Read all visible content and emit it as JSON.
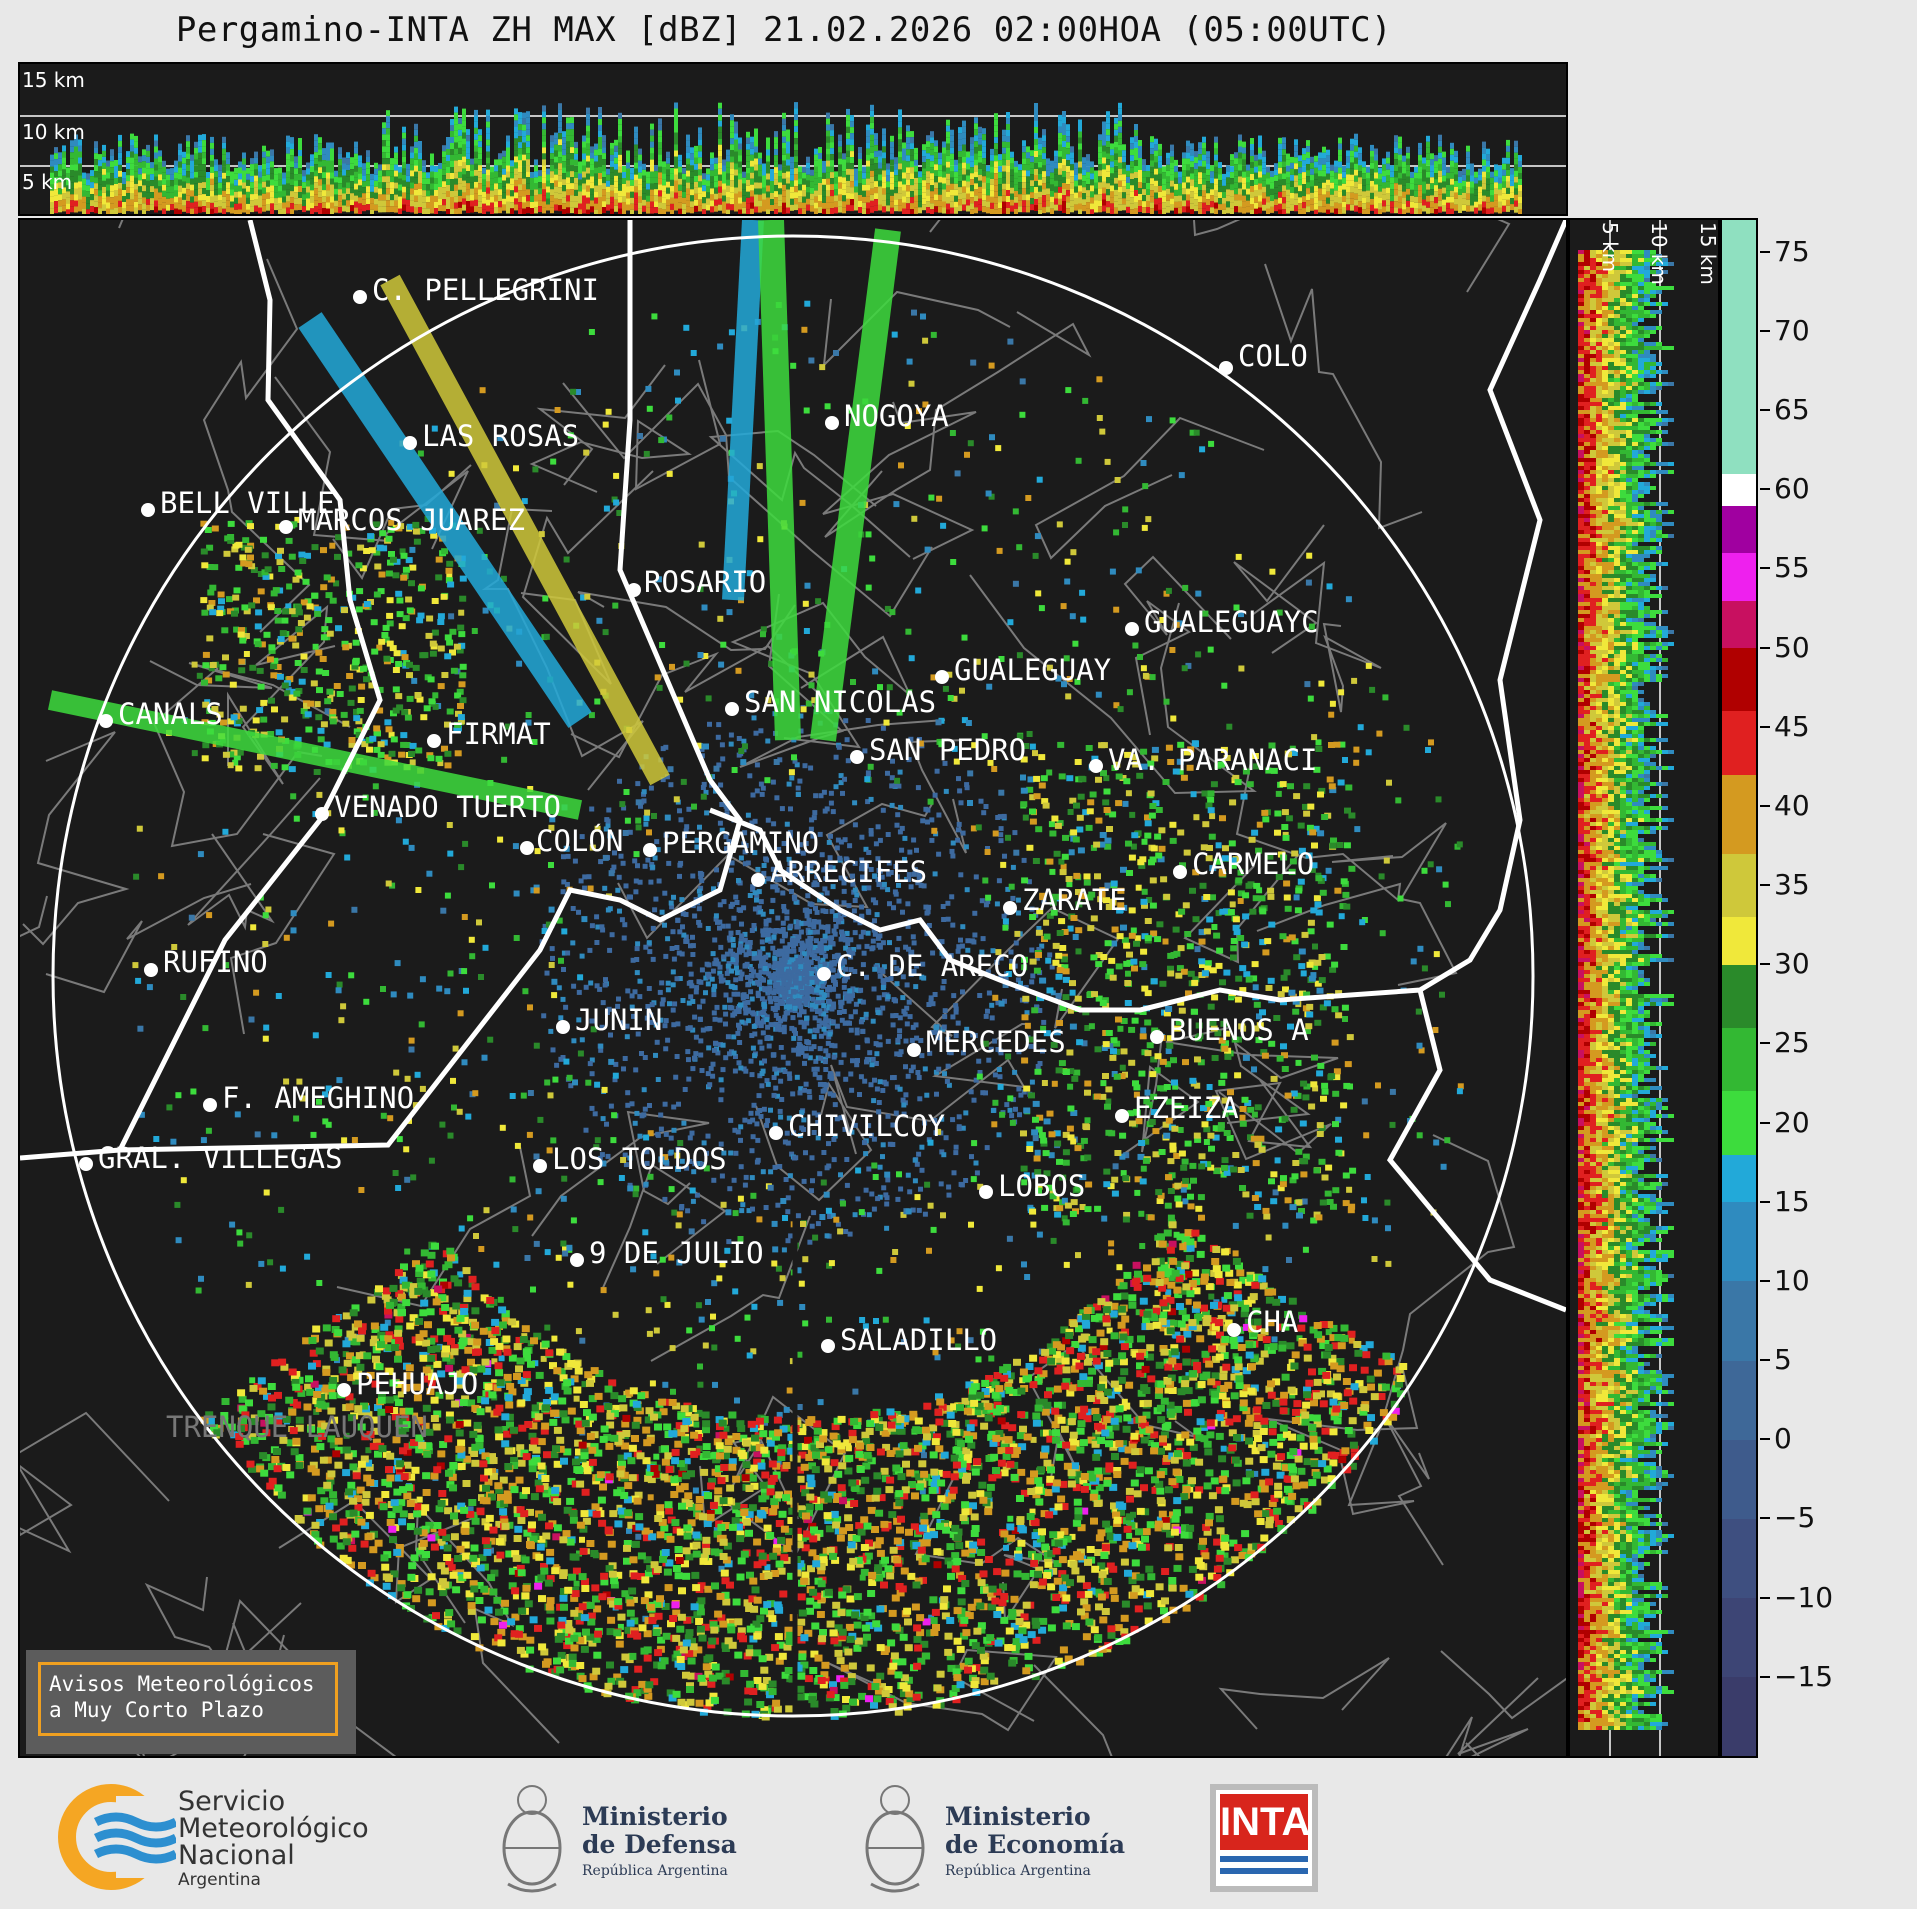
{
  "title": "Pergamino-INTA ZH MAX [dBZ] 21.02.2026 02:00HOA (05:00UTC)",
  "top_panel": {
    "height_labels": [
      "15 km",
      "10 km",
      "5 km"
    ]
  },
  "side_panel": {
    "height_labels": [
      "5 km",
      "10 km",
      "15 km"
    ]
  },
  "colorbar": {
    "unit": "dBZ",
    "ticks": [
      "75",
      "70",
      "65",
      "60",
      "55",
      "50",
      "45",
      "40",
      "35",
      "30",
      "25",
      "20",
      "15",
      "10",
      "5",
      "0",
      "−5",
      "−10",
      "−15"
    ],
    "min": -20,
    "max": 77,
    "color_bins": [
      {
        "from": -20,
        "to": -15,
        "color": "#3a3c6a"
      },
      {
        "from": -15,
        "to": -10,
        "color": "#3d4575"
      },
      {
        "from": -10,
        "to": -5,
        "color": "#3e4f80"
      },
      {
        "from": -5,
        "to": 0,
        "color": "#3e5b8c"
      },
      {
        "from": 0,
        "to": 5,
        "color": "#3e6898"
      },
      {
        "from": 5,
        "to": 10,
        "color": "#3a77a7"
      },
      {
        "from": 10,
        "to": 15,
        "color": "#2f8bbf"
      },
      {
        "from": 15,
        "to": 18,
        "color": "#22a9d9"
      },
      {
        "from": 18,
        "to": 22,
        "color": "#3ddc3d"
      },
      {
        "from": 22,
        "to": 26,
        "color": "#33b833"
      },
      {
        "from": 26,
        "to": 30,
        "color": "#2a8a2a"
      },
      {
        "from": 30,
        "to": 33,
        "color": "#f0e83a"
      },
      {
        "from": 33,
        "to": 37,
        "color": "#cfc83a"
      },
      {
        "from": 37,
        "to": 42,
        "color": "#d49a20"
      },
      {
        "from": 42,
        "to": 46,
        "color": "#e02020"
      },
      {
        "from": 46,
        "to": 50,
        "color": "#b00000"
      },
      {
        "from": 50,
        "to": 53,
        "color": "#c81060"
      },
      {
        "from": 53,
        "to": 56,
        "color": "#ee20ee"
      },
      {
        "from": 56,
        "to": 59,
        "color": "#a000a0"
      },
      {
        "from": 59,
        "to": 61,
        "color": "#ffffff"
      },
      {
        "from": 61,
        "to": 77,
        "color": "#8fe0c0"
      }
    ]
  },
  "cities": [
    {
      "name": "C. PELLEGRINI"
    },
    {
      "name": "LAS ROSAS"
    },
    {
      "name": "NOGOYA"
    },
    {
      "name": "BELL VILLE"
    },
    {
      "name": "MARCOS JUAREZ"
    },
    {
      "name": "ROSARIO"
    },
    {
      "name": "COLO"
    },
    {
      "name": "GUALEGUAYC"
    },
    {
      "name": "GUALEGUAY"
    },
    {
      "name": "SAN NICOLAS"
    },
    {
      "name": "FIRMAT"
    },
    {
      "name": "CANALS"
    },
    {
      "name": "SAN PEDRO"
    },
    {
      "name": "VA. PARANACI"
    },
    {
      "name": "VENADO TUERTO"
    },
    {
      "name": "COLÓN"
    },
    {
      "name": "PERGAMINO"
    },
    {
      "name": "CARMELO"
    },
    {
      "name": "ARRECIFES"
    },
    {
      "name": "ZARATE"
    },
    {
      "name": "RUFINO"
    },
    {
      "name": "C. DE ARECO"
    },
    {
      "name": "JUNIN"
    },
    {
      "name": "BUENOS A"
    },
    {
      "name": "MERCEDES"
    },
    {
      "name": "F. AMEGHINO"
    },
    {
      "name": "EZEIZA"
    },
    {
      "name": "CHIVILCOY"
    },
    {
      "name": "GRAL. VILLEGAS"
    },
    {
      "name": "LOS TOLDOS"
    },
    {
      "name": "LOBOS"
    },
    {
      "name": "9 DE JULIO"
    },
    {
      "name": "CHA"
    },
    {
      "name": "SALADILLO"
    },
    {
      "name": "PEHUAJO"
    },
    {
      "name": "TRENQUE LAUQUEN"
    }
  ],
  "alert_box": {
    "line1": "Avisos Meteorológicos",
    "line2": "a Muy Corto Plazo"
  },
  "footer": {
    "smn": {
      "line1": "Servicio",
      "line2": "Meteorológico",
      "line3": "Nacional",
      "line4": "Argentina"
    },
    "defensa": {
      "line1": "Ministerio",
      "line2": "de Defensa",
      "line3": "República Argentina"
    },
    "economia": {
      "line1": "Ministerio",
      "line2": "de Economía",
      "line3": "República Argentina"
    },
    "inta": {
      "text": "INTA"
    }
  },
  "colors": {
    "panel_bg": "#1b1b1b",
    "range_ring": "#ffffff",
    "alert_border": "#f0a020",
    "smn_orange": "#f5a623",
    "smn_blue": "#2d8fd0",
    "inta_red": "#d8251c"
  }
}
